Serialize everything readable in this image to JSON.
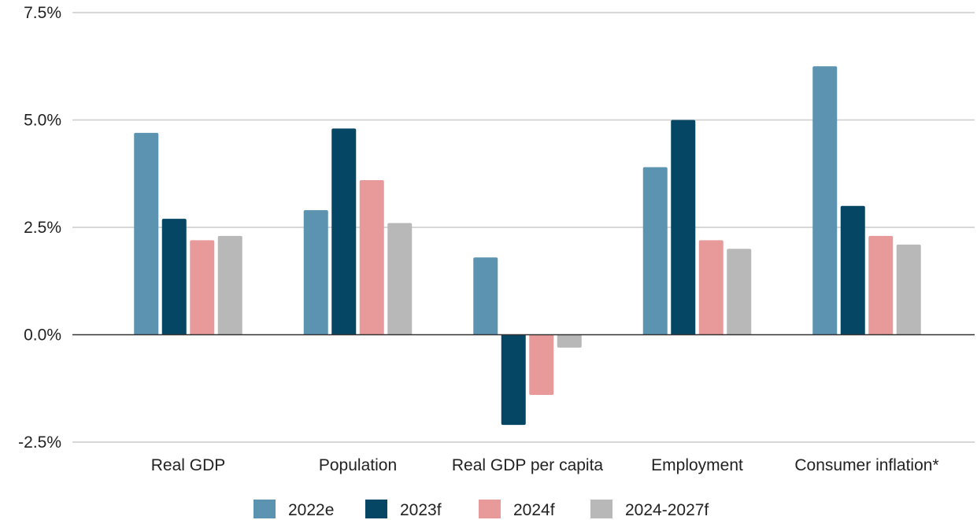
{
  "chart_data": {
    "type": "bar",
    "title": "",
    "xlabel": "",
    "ylabel": "",
    "categories": [
      "Real GDP",
      "Population",
      "Real GDP per capita",
      "Employment",
      "Consumer inflation*"
    ],
    "series": [
      {
        "name": "2022e",
        "color": "#5b93b1",
        "values": [
          4.7,
          2.9,
          1.8,
          3.9,
          6.25
        ]
      },
      {
        "name": "2023f",
        "color": "#044663",
        "values": [
          2.7,
          4.8,
          -2.1,
          5.0,
          3.0
        ]
      },
      {
        "name": "2024f",
        "color": "#e79a99",
        "values": [
          2.2,
          3.6,
          -1.4,
          2.2,
          2.3
        ]
      },
      {
        "name": "2024-2027f",
        "color": "#b8b8b8",
        "values": [
          2.3,
          2.6,
          -0.3,
          2.0,
          2.1
        ]
      }
    ],
    "ylim": [
      -2.5,
      7.5
    ],
    "yticks": [
      -2.5,
      0.0,
      2.5,
      5.0,
      7.5
    ],
    "ytick_labels": [
      "-2.5%",
      "0.0%",
      "2.5%",
      "5.0%",
      "7.5%"
    ],
    "grid": true,
    "legend_position": "bottom-center"
  }
}
